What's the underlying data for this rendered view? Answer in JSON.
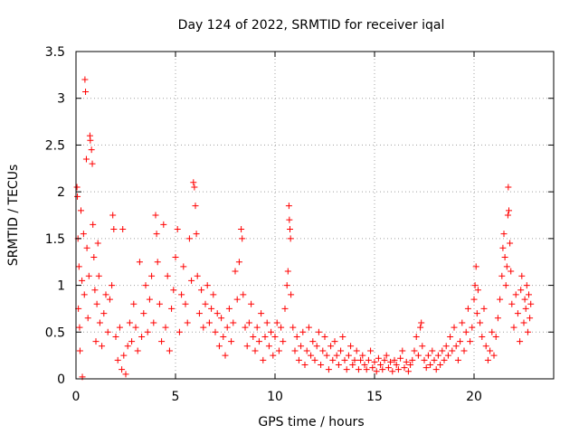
{
  "chart_data": {
    "type": "scatter",
    "title": "Day 124 of 2022, SRMTID for receiver iqal",
    "xlabel": "GPS time / hours",
    "ylabel": "SRMTID / TECUs",
    "xlim": [
      0,
      24
    ],
    "ylim": [
      0,
      3.5
    ],
    "x_ticks": [
      0,
      5,
      10,
      15,
      20
    ],
    "x_tick_labels": [
      "0",
      "5",
      "10",
      "15",
      "20"
    ],
    "y_ticks": [
      0,
      0.5,
      1,
      1.5,
      2,
      2.5,
      3,
      3.5
    ],
    "y_tick_labels": [
      "0",
      "0.5",
      "1",
      "1.5",
      "2",
      "2.5",
      "3",
      "3.5"
    ],
    "grid": true,
    "marker": "+",
    "color": "#ff0000",
    "series": [
      {
        "name": "SRMTID",
        "points": [
          [
            0.05,
            2.05
          ],
          [
            0.07,
            1.95
          ],
          [
            0.1,
            1.5
          ],
          [
            0.12,
            0.75
          ],
          [
            0.15,
            1.2
          ],
          [
            0.18,
            0.55
          ],
          [
            0.2,
            0.3
          ],
          [
            0.25,
            1.8
          ],
          [
            0.3,
            1.05
          ],
          [
            0.32,
            0.02
          ],
          [
            0.38,
            1.55
          ],
          [
            0.42,
            0.9
          ],
          [
            0.45,
            3.2
          ],
          [
            0.48,
            3.07
          ],
          [
            0.52,
            2.35
          ],
          [
            0.55,
            1.4
          ],
          [
            0.6,
            0.65
          ],
          [
            0.65,
            1.1
          ],
          [
            0.7,
            2.6
          ],
          [
            0.72,
            2.55
          ],
          [
            0.78,
            2.45
          ],
          [
            0.82,
            2.3
          ],
          [
            0.85,
            1.65
          ],
          [
            0.9,
            1.3
          ],
          [
            0.95,
            0.95
          ],
          [
            1.0,
            0.4
          ],
          [
            1.05,
            0.8
          ],
          [
            1.1,
            1.45
          ],
          [
            1.15,
            1.1
          ],
          [
            1.2,
            0.6
          ],
          [
            1.3,
            0.35
          ],
          [
            1.4,
            0.7
          ],
          [
            1.5,
            0.9
          ],
          [
            1.6,
            0.5
          ],
          [
            1.7,
            0.85
          ],
          [
            1.8,
            1.0
          ],
          [
            1.85,
            1.75
          ],
          [
            1.9,
            1.6
          ],
          [
            2.0,
            0.45
          ],
          [
            2.1,
            0.2
          ],
          [
            2.2,
            0.55
          ],
          [
            2.3,
            0.1
          ],
          [
            2.35,
            1.6
          ],
          [
            2.4,
            0.25
          ],
          [
            2.5,
            0.05
          ],
          [
            2.6,
            0.35
          ],
          [
            2.7,
            0.6
          ],
          [
            2.8,
            0.4
          ],
          [
            2.9,
            0.8
          ],
          [
            3.0,
            0.55
          ],
          [
            3.1,
            0.3
          ],
          [
            3.2,
            1.25
          ],
          [
            3.3,
            0.45
          ],
          [
            3.4,
            0.7
          ],
          [
            3.5,
            1.0
          ],
          [
            3.6,
            0.5
          ],
          [
            3.7,
            0.85
          ],
          [
            3.8,
            1.1
          ],
          [
            3.9,
            0.6
          ],
          [
            4.0,
            1.75
          ],
          [
            4.05,
            1.55
          ],
          [
            4.1,
            1.25
          ],
          [
            4.2,
            0.8
          ],
          [
            4.3,
            0.4
          ],
          [
            4.4,
            1.65
          ],
          [
            4.5,
            0.55
          ],
          [
            4.6,
            1.1
          ],
          [
            4.7,
            0.3
          ],
          [
            4.8,
            0.75
          ],
          [
            4.9,
            0.95
          ],
          [
            5.0,
            1.3
          ],
          [
            5.1,
            1.6
          ],
          [
            5.2,
            0.5
          ],
          [
            5.3,
            0.9
          ],
          [
            5.4,
            1.2
          ],
          [
            5.5,
            0.8
          ],
          [
            5.6,
            0.6
          ],
          [
            5.7,
            1.5
          ],
          [
            5.8,
            1.05
          ],
          [
            5.9,
            2.1
          ],
          [
            5.95,
            2.05
          ],
          [
            6.0,
            1.85
          ],
          [
            6.05,
            1.55
          ],
          [
            6.1,
            1.1
          ],
          [
            6.2,
            0.7
          ],
          [
            6.3,
            0.95
          ],
          [
            6.4,
            0.55
          ],
          [
            6.5,
            0.8
          ],
          [
            6.6,
            1.0
          ],
          [
            6.7,
            0.6
          ],
          [
            6.8,
            0.75
          ],
          [
            6.9,
            0.9
          ],
          [
            7.0,
            0.5
          ],
          [
            7.1,
            0.7
          ],
          [
            7.2,
            0.35
          ],
          [
            7.3,
            0.65
          ],
          [
            7.4,
            0.45
          ],
          [
            7.5,
            0.25
          ],
          [
            7.6,
            0.55
          ],
          [
            7.7,
            0.75
          ],
          [
            7.8,
            0.4
          ],
          [
            7.9,
            0.6
          ],
          [
            8.0,
            1.15
          ],
          [
            8.1,
            0.85
          ],
          [
            8.2,
            1.25
          ],
          [
            8.3,
            1.6
          ],
          [
            8.35,
            1.5
          ],
          [
            8.4,
            0.9
          ],
          [
            8.5,
            0.55
          ],
          [
            8.6,
            0.35
          ],
          [
            8.7,
            0.6
          ],
          [
            8.8,
            0.8
          ],
          [
            8.9,
            0.45
          ],
          [
            9.0,
            0.3
          ],
          [
            9.1,
            0.55
          ],
          [
            9.2,
            0.4
          ],
          [
            9.3,
            0.7
          ],
          [
            9.4,
            0.2
          ],
          [
            9.5,
            0.45
          ],
          [
            9.6,
            0.6
          ],
          [
            9.7,
            0.35
          ],
          [
            9.8,
            0.5
          ],
          [
            9.9,
            0.25
          ],
          [
            10.0,
            0.45
          ],
          [
            10.1,
            0.6
          ],
          [
            10.2,
            0.3
          ],
          [
            10.3,
            0.55
          ],
          [
            10.4,
            0.4
          ],
          [
            10.5,
            0.75
          ],
          [
            10.6,
            1.0
          ],
          [
            10.65,
            1.15
          ],
          [
            10.7,
            1.85
          ],
          [
            10.72,
            1.7
          ],
          [
            10.75,
            1.6
          ],
          [
            10.78,
            1.5
          ],
          [
            10.8,
            0.9
          ],
          [
            10.9,
            0.55
          ],
          [
            11.0,
            0.3
          ],
          [
            11.1,
            0.45
          ],
          [
            11.2,
            0.2
          ],
          [
            11.3,
            0.35
          ],
          [
            11.4,
            0.5
          ],
          [
            11.5,
            0.15
          ],
          [
            11.6,
            0.3
          ],
          [
            11.7,
            0.55
          ],
          [
            11.8,
            0.25
          ],
          [
            11.9,
            0.4
          ],
          [
            12.0,
            0.2
          ],
          [
            12.1,
            0.35
          ],
          [
            12.2,
            0.5
          ],
          [
            12.3,
            0.15
          ],
          [
            12.4,
            0.3
          ],
          [
            12.5,
            0.45
          ],
          [
            12.6,
            0.25
          ],
          [
            12.7,
            0.1
          ],
          [
            12.8,
            0.35
          ],
          [
            12.9,
            0.2
          ],
          [
            13.0,
            0.4
          ],
          [
            13.1,
            0.25
          ],
          [
            13.2,
            0.15
          ],
          [
            13.3,
            0.3
          ],
          [
            13.4,
            0.45
          ],
          [
            13.5,
            0.2
          ],
          [
            13.6,
            0.1
          ],
          [
            13.7,
            0.25
          ],
          [
            13.8,
            0.35
          ],
          [
            13.9,
            0.15
          ],
          [
            14.0,
            0.2
          ],
          [
            14.1,
            0.3
          ],
          [
            14.2,
            0.1
          ],
          [
            14.3,
            0.2
          ],
          [
            14.4,
            0.25
          ],
          [
            14.5,
            0.15
          ],
          [
            14.6,
            0.1
          ],
          [
            14.7,
            0.2
          ],
          [
            14.8,
            0.3
          ],
          [
            14.9,
            0.12
          ],
          [
            15.0,
            0.18
          ],
          [
            15.1,
            0.08
          ],
          [
            15.2,
            0.22
          ],
          [
            15.3,
            0.15
          ],
          [
            15.4,
            0.1
          ],
          [
            15.5,
            0.2
          ],
          [
            15.6,
            0.25
          ],
          [
            15.7,
            0.12
          ],
          [
            15.8,
            0.18
          ],
          [
            15.9,
            0.08
          ],
          [
            16.0,
            0.2
          ],
          [
            16.1,
            0.15
          ],
          [
            16.2,
            0.1
          ],
          [
            16.3,
            0.22
          ],
          [
            16.4,
            0.3
          ],
          [
            16.5,
            0.12
          ],
          [
            16.6,
            0.18
          ],
          [
            16.7,
            0.08
          ],
          [
            16.8,
            0.15
          ],
          [
            16.9,
            0.2
          ],
          [
            17.0,
            0.3
          ],
          [
            17.1,
            0.45
          ],
          [
            17.2,
            0.25
          ],
          [
            17.3,
            0.55
          ],
          [
            17.35,
            0.6
          ],
          [
            17.4,
            0.35
          ],
          [
            17.5,
            0.2
          ],
          [
            17.6,
            0.12
          ],
          [
            17.7,
            0.25
          ],
          [
            17.8,
            0.15
          ],
          [
            17.9,
            0.3
          ],
          [
            18.0,
            0.2
          ],
          [
            18.1,
            0.1
          ],
          [
            18.2,
            0.25
          ],
          [
            18.3,
            0.15
          ],
          [
            18.4,
            0.3
          ],
          [
            18.5,
            0.2
          ],
          [
            18.6,
            0.35
          ],
          [
            18.7,
            0.25
          ],
          [
            18.8,
            0.45
          ],
          [
            18.9,
            0.3
          ],
          [
            19.0,
            0.55
          ],
          [
            19.1,
            0.35
          ],
          [
            19.2,
            0.2
          ],
          [
            19.3,
            0.4
          ],
          [
            19.4,
            0.6
          ],
          [
            19.5,
            0.3
          ],
          [
            19.6,
            0.5
          ],
          [
            19.7,
            0.75
          ],
          [
            19.8,
            0.4
          ],
          [
            19.9,
            0.55
          ],
          [
            20.0,
            0.85
          ],
          [
            20.05,
            1.0
          ],
          [
            20.1,
            1.2
          ],
          [
            20.15,
            0.7
          ],
          [
            20.2,
            0.95
          ],
          [
            20.3,
            0.6
          ],
          [
            20.4,
            0.45
          ],
          [
            20.5,
            0.75
          ],
          [
            20.6,
            0.35
          ],
          [
            20.7,
            0.2
          ],
          [
            20.8,
            0.3
          ],
          [
            20.9,
            0.5
          ],
          [
            21.0,
            0.25
          ],
          [
            21.1,
            0.45
          ],
          [
            21.2,
            0.65
          ],
          [
            21.3,
            0.85
          ],
          [
            21.4,
            1.1
          ],
          [
            21.45,
            1.4
          ],
          [
            21.5,
            1.55
          ],
          [
            21.55,
            1.3
          ],
          [
            21.6,
            1.0
          ],
          [
            21.65,
            1.2
          ],
          [
            21.7,
            1.75
          ],
          [
            21.72,
            2.05
          ],
          [
            21.75,
            1.8
          ],
          [
            21.8,
            1.45
          ],
          [
            21.85,
            1.15
          ],
          [
            21.9,
            0.8
          ],
          [
            22.0,
            0.55
          ],
          [
            22.1,
            0.9
          ],
          [
            22.2,
            0.7
          ],
          [
            22.3,
            0.4
          ],
          [
            22.35,
            0.95
          ],
          [
            22.4,
            1.1
          ],
          [
            22.5,
            0.6
          ],
          [
            22.55,
            0.85
          ],
          [
            22.6,
            0.75
          ],
          [
            22.65,
            1.0
          ],
          [
            22.7,
            0.5
          ],
          [
            22.75,
            0.9
          ],
          [
            22.8,
            0.65
          ],
          [
            22.85,
            0.8
          ]
        ]
      }
    ]
  }
}
